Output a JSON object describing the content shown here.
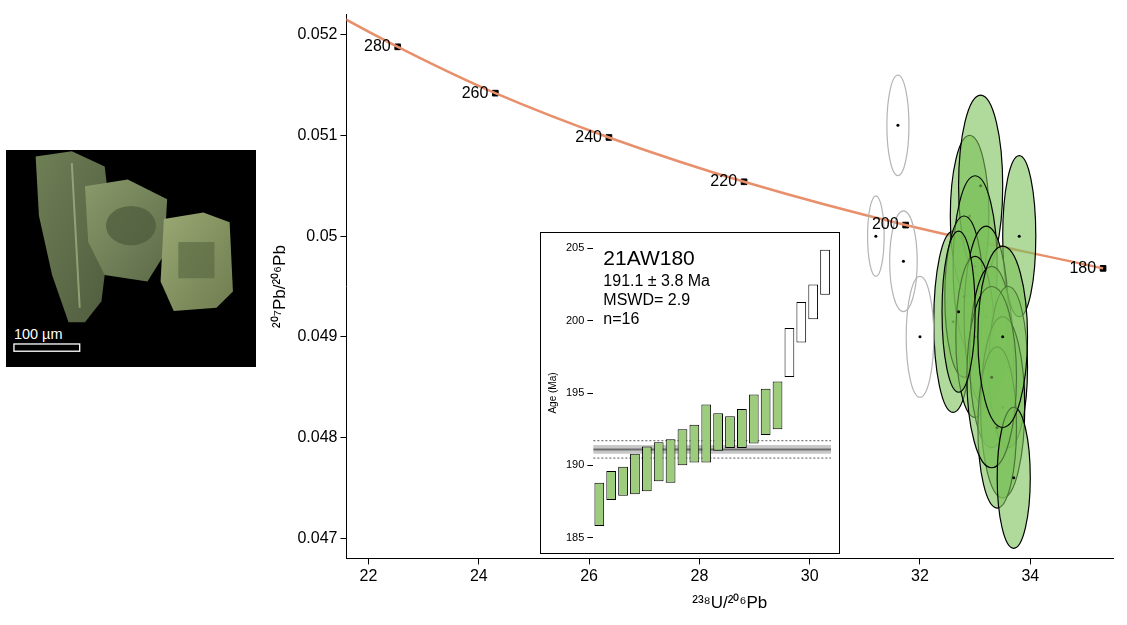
{
  "image": {
    "scale_bar": "100 µm"
  },
  "chart_data": [
    {
      "type": "scatter",
      "x_label": "²³⁸U/²⁰⁶Pb",
      "y_label": "²⁰⁷Pb/²⁰⁶Pb",
      "xlim": [
        21.6,
        35.5
      ],
      "ylim": [
        0.0468,
        0.0522
      ],
      "xticks": [
        22,
        24,
        26,
        28,
        30,
        32,
        34
      ],
      "yticks": [
        0.047,
        0.048,
        0.049,
        0.05,
        0.051,
        0.052
      ],
      "grid": false,
      "concordia": {
        "color": "#e8906c",
        "x": [
          20.99,
          22.53,
          24.3,
          26.36,
          28.81,
          31.74,
          35.32
        ],
        "y": [
          0.05233,
          0.05188,
          0.05142,
          0.05098,
          0.05054,
          0.05011,
          0.04968
        ]
      },
      "age_marks": {
        "ages": [
          280,
          260,
          240,
          220,
          200,
          180
        ],
        "x": [
          22.53,
          24.3,
          26.36,
          28.81,
          31.74,
          35.32
        ],
        "y": [
          0.05188,
          0.05142,
          0.05098,
          0.05054,
          0.05011,
          0.04968
        ]
      },
      "series": [
        {
          "color": "#7cc25a",
          "marker": "ellipse",
          "x": [
            32.6,
            32.9,
            33.1,
            33.8,
            33.0,
            32.8,
            33.2,
            33.0,
            33.3,
            33.6,
            33.5,
            33.4,
            33.3,
            33.7,
            32.7,
            33.5
          ],
          "y": [
            0.04915,
            0.0502,
            0.0505,
            0.05,
            0.0497,
            0.0494,
            0.0492,
            0.049,
            0.0488,
            0.0487,
            0.0483,
            0.0481,
            0.0486,
            0.0476,
            0.04925,
            0.049
          ],
          "x_err": [
            0.35,
            0.35,
            0.4,
            0.3,
            0.4,
            0.35,
            0.4,
            0.35,
            0.4,
            0.35,
            0.4,
            0.35,
            0.45,
            0.3,
            0.3,
            0.45
          ],
          "y_err": [
            0.0009,
            0.0008,
            0.0009,
            0.0008,
            0.0009,
            0.0008,
            0.0009,
            0.0008,
            0.0009,
            0.0008,
            0.0009,
            0.0008,
            0.0009,
            0.0007,
            0.0008,
            0.0009
          ]
        },
        {
          "color": "#b4b4b4",
          "marker": "open_ellipse",
          "x": [
            31.6,
            31.2,
            31.7,
            32.0
          ],
          "y": [
            0.0511,
            0.05,
            0.04975,
            0.049
          ],
          "x_err": [
            0.2,
            0.15,
            0.25,
            0.25
          ],
          "y_err": [
            0.0005,
            0.0004,
            0.0005,
            0.0006
          ]
        }
      ]
    },
    {
      "type": "bar",
      "title": "21AW180",
      "annotations": [
        "191.1 ± 3.8 Ma",
        "MSWD= 2.9",
        "n=16"
      ],
      "y_label": "Age (Ma)",
      "ylim": [
        184.6,
        205.4
      ],
      "yticks": [
        185,
        190,
        195,
        200,
        205
      ],
      "tick_labels": "y",
      "grid": false,
      "categories": [
        null,
        null,
        null,
        null,
        null,
        null,
        null,
        null,
        null,
        null,
        null,
        null,
        null,
        null,
        null,
        null,
        null,
        null,
        null,
        null
      ],
      "values": [
        [
          185.8,
          188.8
        ],
        [
          187.6,
          189.6
        ],
        [
          187.9,
          189.9
        ],
        [
          188.0,
          190.8
        ],
        [
          188.2,
          191.3
        ],
        [
          188.9,
          191.6
        ],
        [
          188.8,
          191.8
        ],
        [
          190.0,
          192.5
        ],
        [
          190.2,
          192.8
        ],
        [
          190.2,
          194.2
        ],
        [
          191.0,
          193.6
        ],
        [
          191.2,
          193.4
        ],
        [
          191.2,
          193.9
        ],
        [
          191.5,
          194.9
        ],
        [
          192.1,
          195.3
        ],
        [
          192.5,
          195.8
        ],
        [
          196.1,
          199.5
        ],
        [
          198.5,
          201.3
        ],
        [
          200.1,
          202.5
        ],
        [
          201.8,
          204.9
        ]
      ],
      "colors": [
        "#9ccc7c",
        "#9ccc7c",
        "#9ccc7c",
        "#9ccc7c",
        "#9ccc7c",
        "#9ccc7c",
        "#9ccc7c",
        "#9ccc7c",
        "#9ccc7c",
        "#9ccc7c",
        "#9ccc7c",
        "#9ccc7c",
        "#9ccc7c",
        "#9ccc7c",
        "#9ccc7c",
        "#9ccc7c",
        "#ffffff",
        "#ffffff",
        "#ffffff",
        "#ffffff"
      ],
      "mean": 191.1,
      "mean_band": [
        190.8,
        191.4
      ],
      "mean_limits": [
        190.5,
        191.7
      ]
    }
  ]
}
